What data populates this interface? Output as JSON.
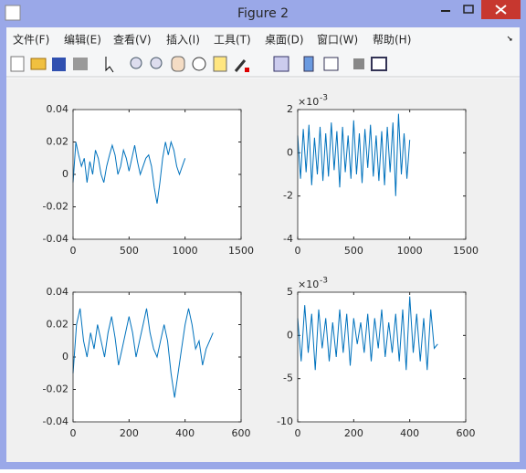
{
  "window": {
    "title": "Figure 2",
    "menu": [
      "文件(F)",
      "编辑(E)",
      "查看(V)",
      "插入(I)",
      "工具(T)",
      "桌面(D)",
      "窗口(W)",
      "帮助(H)"
    ]
  },
  "chart_data": [
    {
      "type": "line",
      "color": "#0072bd",
      "xlim": [
        0,
        1500
      ],
      "ylim": [
        -0.04,
        0.04
      ],
      "xticks": [
        0,
        500,
        1000,
        1500
      ],
      "yticks": [
        -0.04,
        -0.02,
        0,
        0.02,
        0.04
      ],
      "x": [
        0,
        25,
        50,
        75,
        100,
        125,
        150,
        175,
        200,
        225,
        250,
        275,
        300,
        325,
        350,
        375,
        400,
        425,
        450,
        475,
        500,
        525,
        550,
        575,
        600,
        625,
        650,
        675,
        700,
        725,
        750,
        775,
        800,
        825,
        850,
        875,
        900,
        925,
        950,
        975,
        1000
      ],
      "values": [
        -0.005,
        0.02,
        0.012,
        0.005,
        0.01,
        -0.005,
        0.008,
        0,
        0.015,
        0.01,
        0,
        -0.005,
        0.005,
        0.012,
        0.018,
        0.012,
        0,
        0.005,
        0.015,
        0.01,
        0.002,
        0.01,
        0.018,
        0.008,
        0,
        0.005,
        0.01,
        0.012,
        0.005,
        -0.008,
        -0.018,
        -0.005,
        0.01,
        0.02,
        0.012,
        0.02,
        0.015,
        0.005,
        0,
        0.005,
        0.01
      ]
    },
    {
      "type": "line",
      "color": "#0072bd",
      "xlim": [
        0,
        1500
      ],
      "ylim": [
        -4,
        2
      ],
      "xticks": [
        0,
        500,
        1000,
        1500
      ],
      "yticks": [
        -4,
        -2,
        0,
        2
      ],
      "exponent_base": "×10",
      "exponent": "-3",
      "x": [
        0,
        25,
        50,
        75,
        100,
        125,
        150,
        175,
        200,
        225,
        250,
        275,
        300,
        325,
        350,
        375,
        400,
        425,
        450,
        475,
        500,
        525,
        550,
        575,
        600,
        625,
        650,
        675,
        700,
        725,
        750,
        775,
        800,
        825,
        850,
        875,
        900,
        925,
        950,
        975,
        1000
      ],
      "values": [
        0.8,
        -1.2,
        1.1,
        -0.9,
        1.3,
        -1.5,
        0.7,
        -1,
        1.2,
        -1.3,
        0.9,
        -1.1,
        1.4,
        -0.8,
        1,
        -1.6,
        1.2,
        -0.9,
        0.8,
        -1.2,
        1.5,
        -1,
        0.9,
        -1.4,
        1.1,
        -0.7,
        1.3,
        -1.1,
        0.8,
        -1.3,
        1,
        -1.5,
        1.2,
        -0.9,
        1.4,
        -2,
        1.8,
        -1,
        0.9,
        -1.2,
        0.6
      ]
    },
    {
      "type": "line",
      "color": "#0072bd",
      "xlim": [
        0,
        600
      ],
      "ylim": [
        -0.04,
        0.04
      ],
      "xticks": [
        0,
        200,
        400,
        600
      ],
      "yticks": [
        -0.04,
        -0.02,
        0,
        0.02,
        0.04
      ],
      "x": [
        0,
        12.5,
        25,
        37.5,
        50,
        62.5,
        75,
        87.5,
        100,
        112.5,
        125,
        137.5,
        150,
        162.5,
        175,
        187.5,
        200,
        212.5,
        225,
        237.5,
        250,
        262.5,
        275,
        287.5,
        300,
        312.5,
        325,
        337.5,
        350,
        362.5,
        375,
        387.5,
        400,
        412.5,
        425,
        437.5,
        450,
        462.5,
        475,
        487.5,
        500
      ],
      "values": [
        -0.01,
        0.02,
        0.03,
        0.01,
        0,
        0.015,
        0.005,
        0.02,
        0.01,
        0,
        0.015,
        0.025,
        0.012,
        -0.005,
        0.005,
        0.015,
        0.025,
        0.015,
        0,
        0.01,
        0.02,
        0.03,
        0.015,
        0.005,
        0,
        0.01,
        0.02,
        0.01,
        -0.01,
        -0.025,
        -0.01,
        0.005,
        0.02,
        0.03,
        0.02,
        0.005,
        0.01,
        -0.005,
        0.005,
        0.01,
        0.015
      ]
    },
    {
      "type": "line",
      "color": "#0072bd",
      "xlim": [
        0,
        600
      ],
      "ylim": [
        -10,
        5
      ],
      "xticks": [
        0,
        200,
        400,
        600
      ],
      "yticks": [
        -10,
        -5,
        0,
        5
      ],
      "exponent_base": "×10",
      "exponent": "-3",
      "x": [
        0,
        12.5,
        25,
        37.5,
        50,
        62.5,
        75,
        87.5,
        100,
        112.5,
        125,
        137.5,
        150,
        162.5,
        175,
        187.5,
        200,
        212.5,
        225,
        237.5,
        250,
        262.5,
        275,
        287.5,
        300,
        312.5,
        325,
        337.5,
        350,
        362.5,
        375,
        387.5,
        400,
        412.5,
        425,
        437.5,
        450,
        462.5,
        475,
        487.5,
        500
      ],
      "values": [
        2,
        -3,
        3.5,
        -2,
        2.5,
        -4,
        3,
        -1.5,
        2,
        -3,
        1.5,
        -2.5,
        3,
        -2,
        2.5,
        -3.5,
        2,
        -1,
        1.5,
        -2,
        2.5,
        -3,
        2,
        -1.5,
        3,
        -2.5,
        1.5,
        -2,
        2.5,
        -3,
        3,
        -4,
        4.5,
        -2,
        2.5,
        -3,
        2,
        -4,
        3,
        -1.5,
        -1
      ]
    }
  ]
}
